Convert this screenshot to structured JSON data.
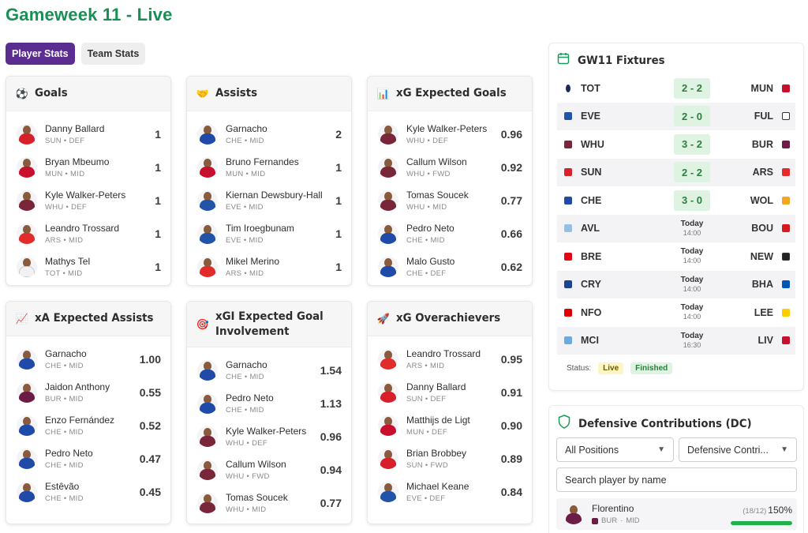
{
  "page": {
    "title": "Gameweek 11 - Live"
  },
  "tabs": [
    {
      "label": "Player Stats",
      "active": true
    },
    {
      "label": "Team Stats",
      "active": false
    }
  ],
  "cards": {
    "goals": {
      "title": "Goals",
      "icon": "soccer-ball-icon",
      "players": [
        {
          "name": "Danny Ballard",
          "team": "SUN",
          "pos": "DEF",
          "value": "1"
        },
        {
          "name": "Bryan Mbeumo",
          "team": "MUN",
          "pos": "MID",
          "value": "1"
        },
        {
          "name": "Kyle Walker-Peters",
          "team": "WHU",
          "pos": "DEF",
          "value": "1"
        },
        {
          "name": "Leandro Trossard",
          "team": "ARS",
          "pos": "MID",
          "value": "1"
        },
        {
          "name": "Mathys Tel",
          "team": "TOT",
          "pos": "MID",
          "value": "1"
        }
      ]
    },
    "assists": {
      "title": "Assists",
      "icon": "handshake-icon",
      "players": [
        {
          "name": "Garnacho",
          "team": "CHE",
          "pos": "MID",
          "value": "2"
        },
        {
          "name": "Bruno Fernandes",
          "team": "MUN",
          "pos": "MID",
          "value": "1"
        },
        {
          "name": "Kiernan Dewsbury-Hall",
          "team": "EVE",
          "pos": "MID",
          "value": "1"
        },
        {
          "name": "Tim Iroegbunam",
          "team": "EVE",
          "pos": "MID",
          "value": "1"
        },
        {
          "name": "Mikel Merino",
          "team": "ARS",
          "pos": "MID",
          "value": "1"
        }
      ]
    },
    "xg": {
      "title": "xG Expected Goals",
      "icon": "bar-chart-icon",
      "players": [
        {
          "name": "Kyle Walker-Peters",
          "team": "WHU",
          "pos": "DEF",
          "value": "0.96"
        },
        {
          "name": "Callum Wilson",
          "team": "WHU",
          "pos": "FWD",
          "value": "0.92"
        },
        {
          "name": "Tomas Soucek",
          "team": "WHU",
          "pos": "MID",
          "value": "0.77"
        },
        {
          "name": "Pedro Neto",
          "team": "CHE",
          "pos": "MID",
          "value": "0.66"
        },
        {
          "name": "Malo Gusto",
          "team": "CHE",
          "pos": "DEF",
          "value": "0.62"
        }
      ]
    },
    "xa": {
      "title": "xA Expected Assists",
      "icon": "trend-up-icon",
      "players": [
        {
          "name": "Garnacho",
          "team": "CHE",
          "pos": "MID",
          "value": "1.00"
        },
        {
          "name": "Jaidon Anthony",
          "team": "BUR",
          "pos": "MID",
          "value": "0.55"
        },
        {
          "name": "Enzo Fernández",
          "team": "CHE",
          "pos": "MID",
          "value": "0.52"
        },
        {
          "name": "Pedro Neto",
          "team": "CHE",
          "pos": "MID",
          "value": "0.47"
        },
        {
          "name": "Estêvão",
          "team": "CHE",
          "pos": "MID",
          "value": "0.45"
        }
      ]
    },
    "xgi": {
      "title": "xGI Expected Goal Involvement",
      "icon": "target-icon",
      "players": [
        {
          "name": "Garnacho",
          "team": "CHE",
          "pos": "MID",
          "value": "1.54"
        },
        {
          "name": "Pedro Neto",
          "team": "CHE",
          "pos": "MID",
          "value": "1.13"
        },
        {
          "name": "Kyle Walker-Peters",
          "team": "WHU",
          "pos": "DEF",
          "value": "0.96"
        },
        {
          "name": "Callum Wilson",
          "team": "WHU",
          "pos": "FWD",
          "value": "0.94"
        },
        {
          "name": "Tomas Soucek",
          "team": "WHU",
          "pos": "MID",
          "value": "0.77"
        }
      ]
    },
    "over": {
      "title": "xG Overachievers",
      "icon": "rocket-icon",
      "players": [
        {
          "name": "Leandro Trossard",
          "team": "ARS",
          "pos": "MID",
          "value": "0.95"
        },
        {
          "name": "Danny Ballard",
          "team": "SUN",
          "pos": "DEF",
          "value": "0.91"
        },
        {
          "name": "Matthijs de Ligt",
          "team": "MUN",
          "pos": "DEF",
          "value": "0.90"
        },
        {
          "name": "Brian Brobbey",
          "team": "SUN",
          "pos": "FWD",
          "value": "0.89"
        },
        {
          "name": "Michael Keane",
          "team": "EVE",
          "pos": "DEF",
          "value": "0.84"
        }
      ]
    }
  },
  "fixtures": {
    "title": "GW11 Fixtures",
    "items": [
      {
        "home": "TOT",
        "away": "MUN",
        "score": "2 - 2",
        "status": "live"
      },
      {
        "home": "EVE",
        "away": "FUL",
        "score": "2 - 0",
        "status": "finished"
      },
      {
        "home": "WHU",
        "away": "BUR",
        "score": "3 - 2",
        "status": "finished"
      },
      {
        "home": "SUN",
        "away": "ARS",
        "score": "2 - 2",
        "status": "finished"
      },
      {
        "home": "CHE",
        "away": "WOL",
        "score": "3 - 0",
        "status": "finished"
      },
      {
        "home": "AVL",
        "away": "BOU",
        "day": "Today",
        "time": "14:00"
      },
      {
        "home": "BRE",
        "away": "NEW",
        "day": "Today",
        "time": "14:00"
      },
      {
        "home": "CRY",
        "away": "BHA",
        "day": "Today",
        "time": "14:00"
      },
      {
        "home": "NFO",
        "away": "LEE",
        "day": "Today",
        "time": "14:00"
      },
      {
        "home": "MCI",
        "away": "LIV",
        "day": "Today",
        "time": "16:30"
      }
    ],
    "status_label": "Status:",
    "live_label": "Live",
    "finished_label": "Finished"
  },
  "defensive": {
    "title": "Defensive Contributions (DC)",
    "position_filter": "All Positions",
    "stat_filter": "Defensive Contri...",
    "search_placeholder": "Search player by name",
    "player": {
      "name": "Florentino",
      "team": "BUR",
      "pos": "MID",
      "count": "(18/12)",
      "pct": "150%",
      "progress": 1.0
    }
  },
  "team_colors": {
    "SUN": "#d7202a",
    "MUN": "#c8102e",
    "WHU": "#7a263a",
    "ARS": "#e22b2b",
    "TOT": "#f2f2f4",
    "CHE": "#1f4aa8",
    "EVE": "#2153a8",
    "BUR": "#6c1d45",
    "FUL": "#ffffff",
    "WOL": "#f5a623",
    "AVL": "#95bfe5",
    "BOU": "#d71920",
    "BRE": "#e30613",
    "NEW": "#222222",
    "CRY": "#1b458f",
    "BHA": "#0057b8",
    "NFO": "#dd0000",
    "LEE": "#ffcd00",
    "MCI": "#6cabdd",
    "LIV": "#c8102e"
  }
}
